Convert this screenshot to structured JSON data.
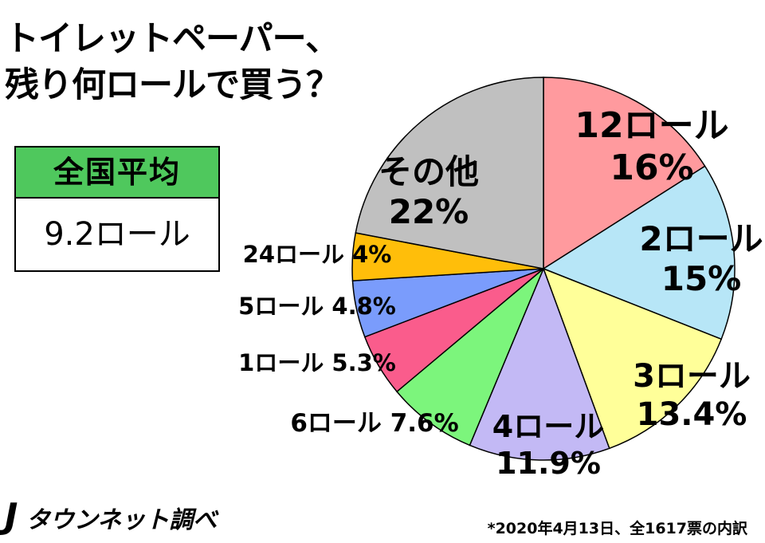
{
  "title_line1": "トイレットペーパー、",
  "title_line2": "残り何ロールで買う？",
  "average": {
    "label": "全国平均",
    "value": "9.2ロール",
    "header_color": "#4fc85d"
  },
  "brand": {
    "mark": "J",
    "name": "タウンネット調べ"
  },
  "footnote": "*2020年4月13日、全1617票の内訳",
  "chart_data": {
    "type": "pie",
    "title": "トイレットペーパー、残り何ロールで買う？",
    "start": "12 o'clock, clockwise",
    "slices": [
      {
        "label": "12ロール",
        "value": 16,
        "value_label": "16%",
        "color": "#ff9a9e"
      },
      {
        "label": "2ロール",
        "value": 15,
        "value_label": "15%",
        "color": "#b7e6f7"
      },
      {
        "label": "3ロール",
        "value": 13.4,
        "value_label": "13.4%",
        "color": "#ffff99"
      },
      {
        "label": "4ロール",
        "value": 11.9,
        "value_label": "11.9%",
        "color": "#c3b9f5"
      },
      {
        "label": "6ロール",
        "value": 7.6,
        "value_label": "7.6%",
        "color": "#7cf57c"
      },
      {
        "label": "1ロール",
        "value": 5.3,
        "value_label": "5.3%",
        "color": "#fa5c8c"
      },
      {
        "label": "5ロール",
        "value": 4.8,
        "value_label": "4.8%",
        "color": "#7a9cfc"
      },
      {
        "label": "24ロール",
        "value": 4,
        "value_label": "4%",
        "color": "#ffbe0a"
      },
      {
        "label": "その他",
        "value": 22,
        "value_label": "22%",
        "color": "#c0c0c0"
      }
    ]
  }
}
